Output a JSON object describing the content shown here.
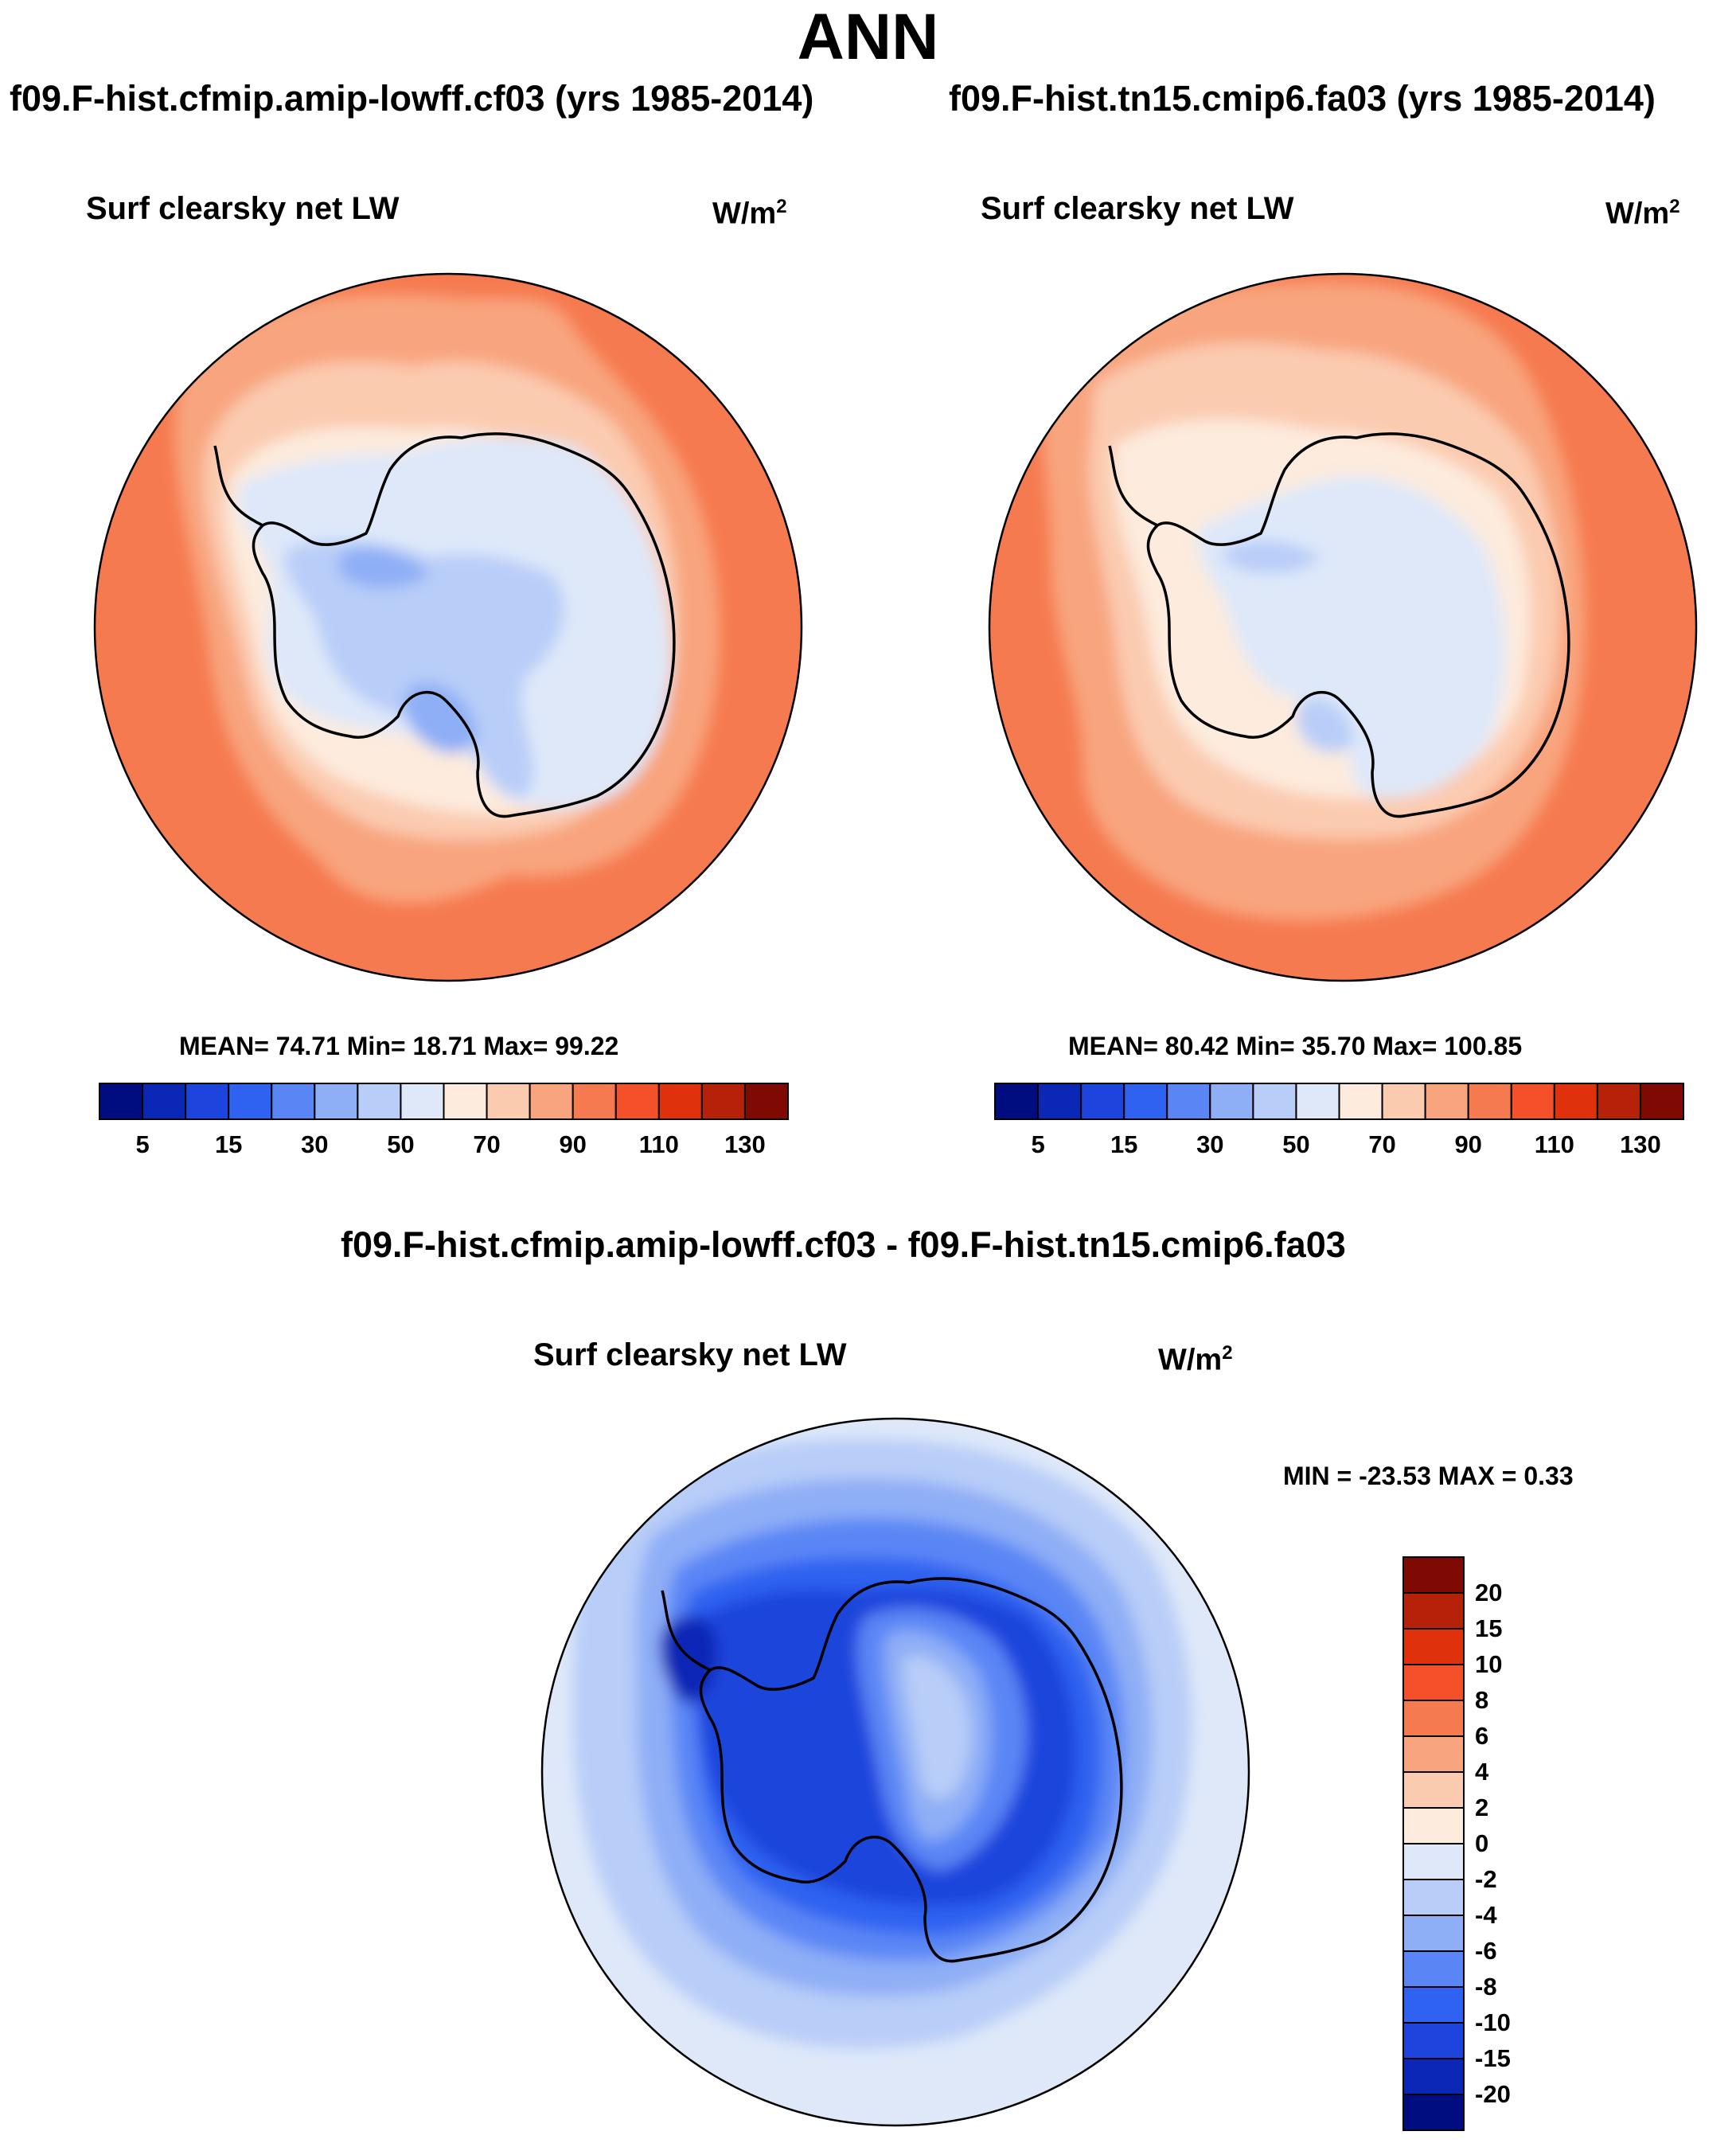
{
  "title": "ANN",
  "panels": [
    {
      "name": "panel-cf03",
      "title": "f09.F-hist.cfmip.amip-lowff.cf03 (yrs 1985-2014)",
      "variable": "Surf clearsky net LW",
      "units": "W/m",
      "units_sup": "2",
      "stats": "MEAN=  74.71  Min=  18.71  Max=  99.22"
    },
    {
      "name": "panel-fa03",
      "title": "f09.F-hist.tn15.cmip6.fa03 (yrs 1985-2014)",
      "variable": "Surf clearsky net LW",
      "units": "W/m",
      "units_sup": "2",
      "stats": "MEAN=  80.42  Min=  35.70  Max= 100.85"
    },
    {
      "name": "panel-diff",
      "title": "f09.F-hist.cfmip.amip-lowff.cf03 - f09.F-hist.tn15.cmip6.fa03",
      "variable": "Surf clearsky net LW",
      "units": "W/m",
      "units_sup": "2",
      "stats": "MIN = -23.53 MAX =   0.33"
    }
  ],
  "colorbar_abs": {
    "colors": [
      "#000d80",
      "#0a27b5",
      "#1d44dc",
      "#2f62f0",
      "#5a86f5",
      "#8eaef6",
      "#b8cdf8",
      "#dee8f9",
      "#fdebdd",
      "#fbcbb0",
      "#f8a47e",
      "#f67a4f",
      "#f4502a",
      "#df320c",
      "#b52209",
      "#7f0a04"
    ],
    "tick_labels": [
      "5",
      "15",
      "30",
      "50",
      "70",
      "90",
      "110",
      "130"
    ]
  },
  "colorbar_diff": {
    "colors": [
      "#7f0a04",
      "#b52209",
      "#df320c",
      "#f4502a",
      "#f67a4f",
      "#f8a47e",
      "#fbcbb0",
      "#fdebdd",
      "#dee8f9",
      "#b8cdf8",
      "#8eaef6",
      "#5a86f5",
      "#2f62f0",
      "#1d44dc",
      "#0a27b5",
      "#000d80"
    ],
    "tick_labels": [
      "20",
      "15",
      "10",
      "8",
      "6",
      "4",
      "2",
      "0",
      "-2",
      "-4",
      "-6",
      "-8",
      "-10",
      "-15",
      "-20"
    ]
  },
  "chart_data": [
    {
      "type": "heatmap",
      "title": "f09.F-hist.cfmip.amip-lowff.cf03 (yrs 1985-2014)",
      "variable": "Surf clearsky net LW",
      "units": "W/m2",
      "projection": "south polar stereographic",
      "mean": 74.71,
      "min": 18.71,
      "max": 99.22,
      "levels": [
        5,
        10,
        15,
        20,
        30,
        40,
        50,
        60,
        70,
        80,
        90,
        100,
        110,
        120,
        130
      ]
    },
    {
      "type": "heatmap",
      "title": "f09.F-hist.tn15.cmip6.fa03 (yrs 1985-2014)",
      "variable": "Surf clearsky net LW",
      "units": "W/m2",
      "projection": "south polar stereographic",
      "mean": 80.42,
      "min": 35.7,
      "max": 100.85,
      "levels": [
        5,
        10,
        15,
        20,
        30,
        40,
        50,
        60,
        70,
        80,
        90,
        100,
        110,
        120,
        130
      ]
    },
    {
      "type": "heatmap",
      "title": "f09.F-hist.cfmip.amip-lowff.cf03 - f09.F-hist.tn15.cmip6.fa03",
      "variable": "Surf clearsky net LW",
      "units": "W/m2",
      "projection": "south polar stereographic",
      "min": -23.53,
      "max": 0.33,
      "levels": [
        -20,
        -15,
        -10,
        -8,
        -6,
        -4,
        -2,
        0,
        2,
        4,
        6,
        8,
        10,
        15,
        20
      ]
    }
  ]
}
